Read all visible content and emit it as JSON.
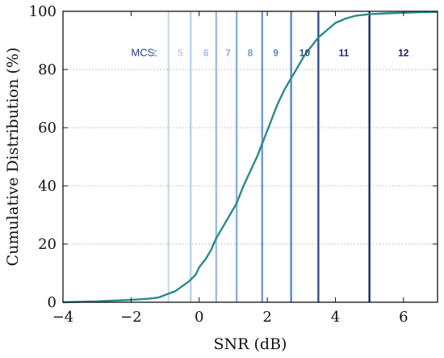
{
  "chart_data": {
    "type": "line",
    "title": "",
    "xlabel": "SNR (dB)",
    "ylabel": "Cumulative Distribution (%)",
    "xlim": [
      -4,
      7
    ],
    "ylim": [
      0,
      100
    ],
    "xticks": [
      -4,
      -2,
      0,
      2,
      4,
      6
    ],
    "xtick_labels": [
      "−4",
      "−2",
      "0",
      "2",
      "4",
      "6"
    ],
    "yticks": [
      0,
      20,
      40,
      60,
      80,
      100
    ],
    "ytick_labels": [
      "0",
      "20",
      "40",
      "60",
      "80",
      "100"
    ],
    "grid": "horizontal dotted",
    "series": [
      {
        "color": "#2a8a8a",
        "x": [
          -4.0,
          -3.0,
          -2.0,
          -1.5,
          -1.2,
          -1.0,
          -0.7,
          -0.5,
          -0.3,
          -0.1,
          0.0,
          0.2,
          0.35,
          0.5,
          0.7,
          0.9,
          1.1,
          1.3,
          1.5,
          1.7,
          1.9,
          2.1,
          2.3,
          2.5,
          2.7,
          2.9,
          3.1,
          3.3,
          3.5,
          3.8,
          4.0,
          4.3,
          4.6,
          5.0,
          5.5,
          6.0,
          6.5,
          7.0
        ],
        "y": [
          0,
          0.3,
          0.8,
          1.2,
          1.6,
          2.5,
          3.8,
          5.5,
          7.2,
          9.5,
          12,
          15,
          18,
          22,
          26,
          30,
          34,
          40,
          45,
          50,
          56,
          62,
          68,
          73,
          77,
          81,
          85,
          88,
          91,
          94,
          96,
          97.5,
          98.5,
          99,
          99.3,
          99.5,
          99.7,
          99.8
        ]
      }
    ],
    "mcs_header": "MCS:",
    "mcs_lines": [
      {
        "label": "4",
        "x": -0.9,
        "color": "#c8ddee",
        "label_x": -1.35
      },
      {
        "label": "5",
        "x": -0.25,
        "color": "#b8d2ea",
        "label_x": -0.55
      },
      {
        "label": "6",
        "x": 0.5,
        "color": "#9dbfe2",
        "label_x": 0.2
      },
      {
        "label": "7",
        "x": 1.1,
        "color": "#8ab0dc",
        "label_x": 0.85
      },
      {
        "label": "8",
        "x": 1.85,
        "color": "#6f9ad3",
        "label_x": 1.5
      },
      {
        "label": "9",
        "x": 2.7,
        "color": "#5a86c8",
        "label_x": 2.25
      },
      {
        "label": "10",
        "x": 3.5,
        "color": "#2f4f8f",
        "label_x": 3.1
      },
      {
        "label": "11",
        "x": 5.0,
        "color": "#1a2a6a",
        "label_x": 4.25
      },
      {
        "label": "12",
        "x": null,
        "color": "#0f1e55",
        "label_x": 6.0
      }
    ],
    "mcs_header_x": -2.0,
    "mcs_row_y": 86
  }
}
